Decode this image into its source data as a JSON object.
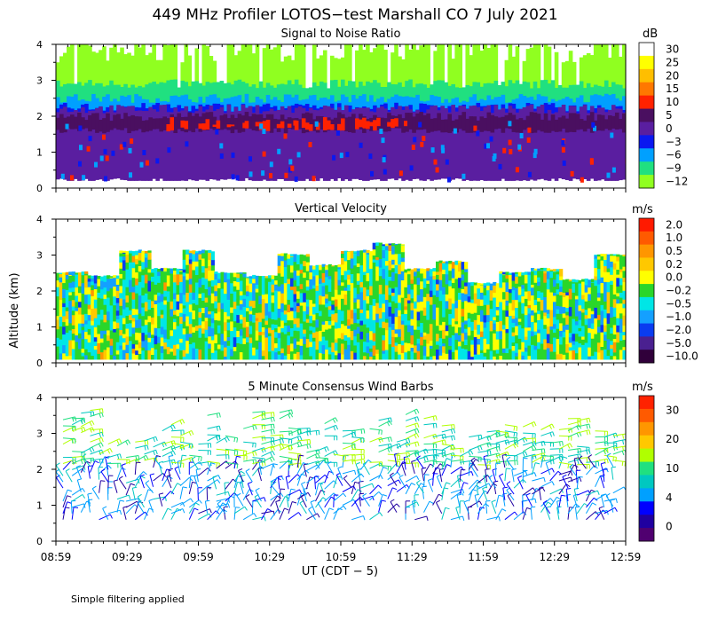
{
  "title": "449 MHz Profiler LOTOS−test Marshall CO  7 July 2021",
  "footer_note": "Simple filtering applied",
  "y_axis_label": "Altitude (km)",
  "x_axis_label": "UT  (CDT − 5)",
  "x_tick_labels": [
    "08:59",
    "09:29",
    "09:59",
    "10:29",
    "10:59",
    "11:29",
    "11:59",
    "12:29",
    "12:59"
  ],
  "y_tick_labels": [
    "0",
    "1",
    "2",
    "3",
    "4"
  ],
  "chart_data": [
    {
      "type": "heatmap",
      "title": "Signal to Noise Ratio",
      "units": "dB",
      "x_range_hours": [
        8.983,
        12.983
      ],
      "ylim": [
        0,
        4
      ],
      "colorbar": {
        "labels": [
          "30",
          "25",
          "20",
          "15",
          "10",
          "5",
          "0",
          "−3",
          "−6",
          "−9",
          "−12"
        ],
        "colors": [
          "#ffffff",
          "#ffff00",
          "#ffbe00",
          "#ff7800",
          "#ff2200",
          "#4a0f60",
          "#5a1ea0",
          "#0a18f0",
          "#00a0ff",
          "#20e080",
          "#90ff20"
        ]
      },
      "layers": [
        {
          "name": "low-snr noisy top",
          "from_km": 2.4,
          "to_km": 3.9,
          "color": "#90ff20"
        },
        {
          "name": "green band",
          "from_km": 2.2,
          "to_km": 2.9,
          "color": "#20e080"
        },
        {
          "name": "cyan band",
          "from_km": 2.05,
          "to_km": 2.5,
          "color": "#00a0ff"
        },
        {
          "name": "blue band",
          "from_km": 1.95,
          "to_km": 2.25,
          "color": "#0a18f0"
        },
        {
          "name": "boundary layer",
          "from_km": 0.2,
          "to_km": 2.2,
          "color": "#5a1ea0"
        },
        {
          "name": "inversion layer",
          "from_km": 1.6,
          "to_km": 2.0,
          "color": "#4a0f60"
        },
        {
          "name": "strong return",
          "from_km": 1.65,
          "to_km": 1.85,
          "color": "#ff2200"
        }
      ]
    },
    {
      "type": "heatmap",
      "title": "Vertical Velocity",
      "units": "m/s",
      "x_range_hours": [
        8.983,
        12.983
      ],
      "ylim": [
        0,
        4
      ],
      "colorbar": {
        "labels": [
          "2.0",
          "1.0",
          "0.5",
          "0.2",
          "0.0",
          "−0.2",
          "−0.5",
          "−1.0",
          "−2.0",
          "−5.0",
          "−10.0"
        ],
        "colors": [
          "#ff1a00",
          "#ff5a00",
          "#ff9600",
          "#ffc800",
          "#ffff00",
          "#2ad62a",
          "#00e6e6",
          "#14a0ff",
          "#0a3cf0",
          "#4a2090",
          "#30003a"
        ]
      },
      "data_top_km": [
        2.5,
        2.4,
        3.1,
        2.6,
        3.1,
        2.5,
        2.4,
        3.0,
        2.7,
        3.1,
        3.3,
        2.6,
        2.8,
        2.2,
        2.5,
        2.6,
        2.3,
        3.0
      ]
    },
    {
      "type": "wind_barbs",
      "title": "5 Minute Consensus Wind Barbs",
      "units": "m/s",
      "x_range_hours": [
        8.983,
        12.983
      ],
      "ylim": [
        0,
        4
      ],
      "colorbar": {
        "labels": [
          "30",
          "20",
          "10",
          "4",
          "0"
        ],
        "colors": [
          "#ff2200",
          "#ff5a00",
          "#ff9600",
          "#ffc800",
          "#b0ff00",
          "#20e080",
          "#00c8c0",
          "#00a0ff",
          "#0000ff",
          "#2000a0",
          "#500070"
        ]
      }
    }
  ]
}
